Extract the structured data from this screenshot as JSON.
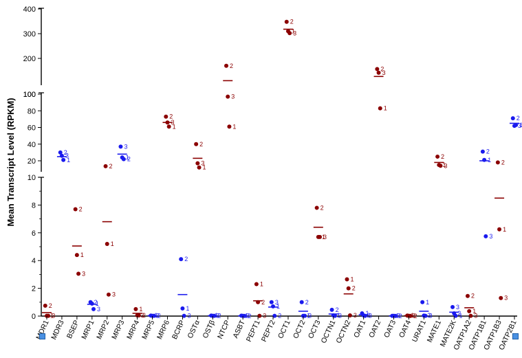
{
  "chart_data": {
    "type": "scatter",
    "ylabel": "Mean Transcript Level (RPKM)",
    "y_axis_segments": [
      {
        "range": [
          0,
          10
        ],
        "ticks": [
          "0",
          "2",
          "4",
          "6",
          "8",
          "10"
        ]
      },
      {
        "range": [
          10,
          100
        ],
        "ticks": [
          "20",
          "40",
          "60",
          "80",
          "100"
        ]
      },
      {
        "range": [
          100,
          400
        ],
        "ticks": [
          "100",
          "200",
          "300",
          "400"
        ]
      }
    ],
    "colors": {
      "red": "#8b0000",
      "blue": "#1a1aee"
    },
    "categories": [
      {
        "name": "MDR1",
        "color": "red",
        "mean": 0.25,
        "points": [
          {
            "y": 0.75,
            "label": "2"
          },
          {
            "y": 0.02,
            "label": "1"
          },
          {
            "y": 0.02,
            "label": "3"
          }
        ]
      },
      {
        "name": "MDR3",
        "color": "blue",
        "mean": 25,
        "points": [
          {
            "y": 30,
            "label": "2"
          },
          {
            "y": 26,
            "label": "3"
          },
          {
            "y": 21,
            "label": "1"
          }
        ]
      },
      {
        "name": "BSEP",
        "color": "red",
        "mean": 5.05,
        "points": [
          {
            "y": 7.7,
            "label": "2"
          },
          {
            "y": 4.4,
            "label": "1"
          },
          {
            "y": 3.05,
            "label": "3"
          }
        ]
      },
      {
        "name": "MRP1",
        "color": "blue",
        "mean": 0.85,
        "points": [
          {
            "y": 1.0,
            "label": "2"
          },
          {
            "y": 0.9,
            "label": "1"
          },
          {
            "y": 0.5,
            "label": "3"
          }
        ]
      },
      {
        "name": "MRP2",
        "color": "red",
        "mean": 6.8,
        "points": [
          {
            "y": 13.5,
            "label": "2"
          },
          {
            "y": 5.2,
            "label": "1"
          },
          {
            "y": 1.55,
            "label": "3"
          }
        ]
      },
      {
        "name": "MRP3",
        "color": "blue",
        "mean": 28,
        "points": [
          {
            "y": 37,
            "label": "3"
          },
          {
            "y": 24,
            "label": "1"
          },
          {
            "y": 22,
            "label": "2"
          }
        ]
      },
      {
        "name": "MRP4",
        "color": "red",
        "mean": 0.2,
        "points": [
          {
            "y": 0.5,
            "label": "1"
          },
          {
            "y": 0.05,
            "label": "3"
          },
          {
            "y": 0.05,
            "label": "2"
          }
        ]
      },
      {
        "name": "MRP5",
        "color": "blue",
        "mean": 0.03,
        "points": [
          {
            "y": 0.04,
            "label": "1"
          },
          {
            "y": 0.02,
            "label": "3"
          },
          {
            "y": 0.02,
            "label": "2"
          }
        ]
      },
      {
        "name": "MRP6",
        "color": "red",
        "mean": 66,
        "points": [
          {
            "y": 73,
            "label": "2"
          },
          {
            "y": 66,
            "label": "3"
          },
          {
            "y": 61,
            "label": "1"
          }
        ]
      },
      {
        "name": "BCRP",
        "color": "blue",
        "mean": 1.55,
        "points": [
          {
            "y": 4.1,
            "label": "2"
          },
          {
            "y": 0.55,
            "label": "1"
          },
          {
            "y": 0.02,
            "label": "3"
          }
        ]
      },
      {
        "name": "OSTα",
        "color": "red",
        "mean": 23,
        "points": [
          {
            "y": 40,
            "label": "2"
          },
          {
            "y": 17,
            "label": "3"
          },
          {
            "y": 12,
            "label": "1"
          }
        ]
      },
      {
        "name": "OSTβ",
        "color": "blue",
        "mean": 0.03,
        "points": [
          {
            "y": 0.04,
            "label": "1"
          },
          {
            "y": 0.02,
            "label": "3"
          },
          {
            "y": 0.02,
            "label": "2"
          }
        ]
      },
      {
        "name": "NTCP",
        "color": "red",
        "mean": 110,
        "points": [
          {
            "y": 170,
            "label": "2"
          },
          {
            "y": 97,
            "label": "3"
          },
          {
            "y": 61,
            "label": "1"
          }
        ]
      },
      {
        "name": "ASBT",
        "color": "blue",
        "mean": 0.02,
        "points": [
          {
            "y": 0.03,
            "label": "1"
          },
          {
            "y": 0.02,
            "label": "3"
          },
          {
            "y": 0.01,
            "label": "2"
          }
        ]
      },
      {
        "name": "PEPT1",
        "color": "red",
        "mean": 1.1,
        "points": [
          {
            "y": 2.3,
            "label": "1"
          },
          {
            "y": 1.0,
            "label": "2"
          },
          {
            "y": 0.02,
            "label": "3"
          }
        ]
      },
      {
        "name": "PEPT2",
        "color": "blue",
        "mean": 0.65,
        "points": [
          {
            "y": 1.0,
            "label": "3"
          },
          {
            "y": 0.7,
            "label": "1"
          },
          {
            "y": 0.02,
            "label": "2"
          }
        ]
      },
      {
        "name": "OCT1",
        "color": "red",
        "mean": 318,
        "points": [
          {
            "y": 348,
            "label": "2"
          },
          {
            "y": 310,
            "label": "1"
          },
          {
            "y": 302,
            "label": "3"
          }
        ]
      },
      {
        "name": "OCT2",
        "color": "blue",
        "mean": 0.35,
        "points": [
          {
            "y": 1.0,
            "label": "2"
          },
          {
            "y": 0.02,
            "label": "1"
          },
          {
            "y": 0.02,
            "label": "3"
          }
        ]
      },
      {
        "name": "OCT3",
        "color": "red",
        "mean": 6.4,
        "points": [
          {
            "y": 7.8,
            "label": "2"
          },
          {
            "y": 5.7,
            "label": "1"
          },
          {
            "y": 5.7,
            "label": "3"
          }
        ]
      },
      {
        "name": "OCTN1",
        "color": "blue",
        "mean": 0.15,
        "points": [
          {
            "y": 0.45,
            "label": "2"
          },
          {
            "y": 0.05,
            "label": "1"
          },
          {
            "y": 0.02,
            "label": "3"
          }
        ]
      },
      {
        "name": "OCTN2",
        "color": "red",
        "mean": 1.6,
        "points": [
          {
            "y": 2.65,
            "label": "1"
          },
          {
            "y": 2.0,
            "label": "2"
          },
          {
            "y": 0.05,
            "label": "3"
          }
        ]
      },
      {
        "name": "OAT1",
        "color": "blue",
        "mean": 0.1,
        "points": [
          {
            "y": 0.2,
            "label": "1"
          },
          {
            "y": 0.05,
            "label": "2"
          },
          {
            "y": 0.02,
            "label": "3"
          }
        ]
      },
      {
        "name": "OAT2",
        "color": "red",
        "mean": 127,
        "points": [
          {
            "y": 157,
            "label": "2"
          },
          {
            "y": 142,
            "label": "3"
          },
          {
            "y": 83,
            "label": "1"
          }
        ]
      },
      {
        "name": "OAT3",
        "color": "blue",
        "mean": 0.02,
        "points": [
          {
            "y": 0.02,
            "label": "1"
          },
          {
            "y": 0.02,
            "label": "3"
          },
          {
            "y": 0.01,
            "label": "2"
          }
        ]
      },
      {
        "name": "OAT4",
        "color": "red",
        "mean": 0.03,
        "points": [
          {
            "y": 0.04,
            "label": "1"
          },
          {
            "y": 0.02,
            "label": "3"
          },
          {
            "y": 0.01,
            "label": "2"
          }
        ]
      },
      {
        "name": "URAT1",
        "color": "blue",
        "mean": 0.35,
        "points": [
          {
            "y": 1.0,
            "label": "1"
          },
          {
            "y": 0.04,
            "label": "2"
          },
          {
            "y": 0.02,
            "label": "3"
          }
        ]
      },
      {
        "name": "MATE1",
        "color": "red",
        "mean": 18,
        "points": [
          {
            "y": 25,
            "label": "2"
          },
          {
            "y": 15,
            "label": "1"
          },
          {
            "y": 14,
            "label": "3"
          }
        ]
      },
      {
        "name": "MATE2K",
        "color": "blue",
        "mean": 0.28,
        "points": [
          {
            "y": 0.65,
            "label": "3"
          },
          {
            "y": 0.2,
            "label": "2"
          },
          {
            "y": 0.02,
            "label": "1"
          }
        ]
      },
      {
        "name": "OATP1A2",
        "color": "red",
        "mean": 0.6,
        "points": [
          {
            "y": 1.45,
            "label": "2"
          },
          {
            "y": 0.35,
            "label": "1"
          },
          {
            "y": 0.02,
            "label": "3"
          }
        ]
      },
      {
        "name": "OATP1B1",
        "color": "blue",
        "mean": 20,
        "points": [
          {
            "y": 31,
            "label": "2"
          },
          {
            "y": 21,
            "label": "1"
          },
          {
            "y": 5.75,
            "label": "3"
          }
        ]
      },
      {
        "name": "OATP1B3",
        "color": "red",
        "mean": 8.5,
        "points": [
          {
            "y": 18,
            "label": "2"
          },
          {
            "y": 6.25,
            "label": "1"
          },
          {
            "y": 1.3,
            "label": "3"
          }
        ]
      },
      {
        "name": "OATP2B1",
        "color": "blue",
        "mean": 65,
        "points": [
          {
            "y": 71,
            "label": "2"
          },
          {
            "y": 62,
            "label": "3"
          },
          {
            "y": 63,
            "label": "1"
          }
        ]
      }
    ]
  }
}
